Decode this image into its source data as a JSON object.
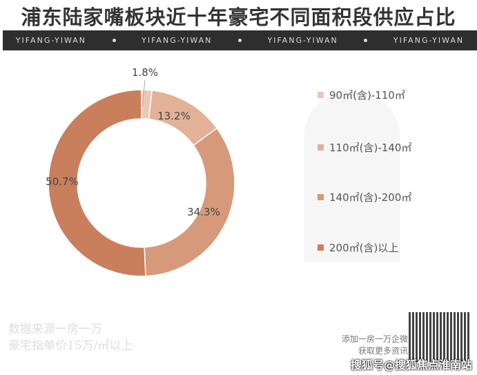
{
  "header": {
    "title": "浦东陆家嘴板块近十年豪宅不同面积段供应占比",
    "band": [
      "YIFANG-YIWAN",
      "YIFANG-YIWAN",
      "YIFANG-YIWAN",
      "YIFANG-YIWAN"
    ]
  },
  "chart_data": {
    "type": "pie",
    "subtype": "donut",
    "categories": [
      "90㎡(含)-110㎡",
      "110㎡(含)-140㎡",
      "140㎡(含)-200㎡",
      "200㎡(含)以上"
    ],
    "values": [
      1.8,
      13.2,
      34.3,
      50.7
    ],
    "labels": [
      "1.8%",
      "13.2%",
      "34.3%",
      "50.7%"
    ],
    "colors": [
      "#e9c9b6",
      "#e2b197",
      "#d69a7a",
      "#c97f5c"
    ],
    "legend_position": "right"
  },
  "footer": {
    "source_line1": "数据来源一房一万",
    "source_line2": "豪宅指单价15万/㎡以上",
    "qr_line1": "添加一房一万企微",
    "qr_line2": "获取更多资讯",
    "watermark": "搜狐号@搜狐焦点淮南站"
  }
}
